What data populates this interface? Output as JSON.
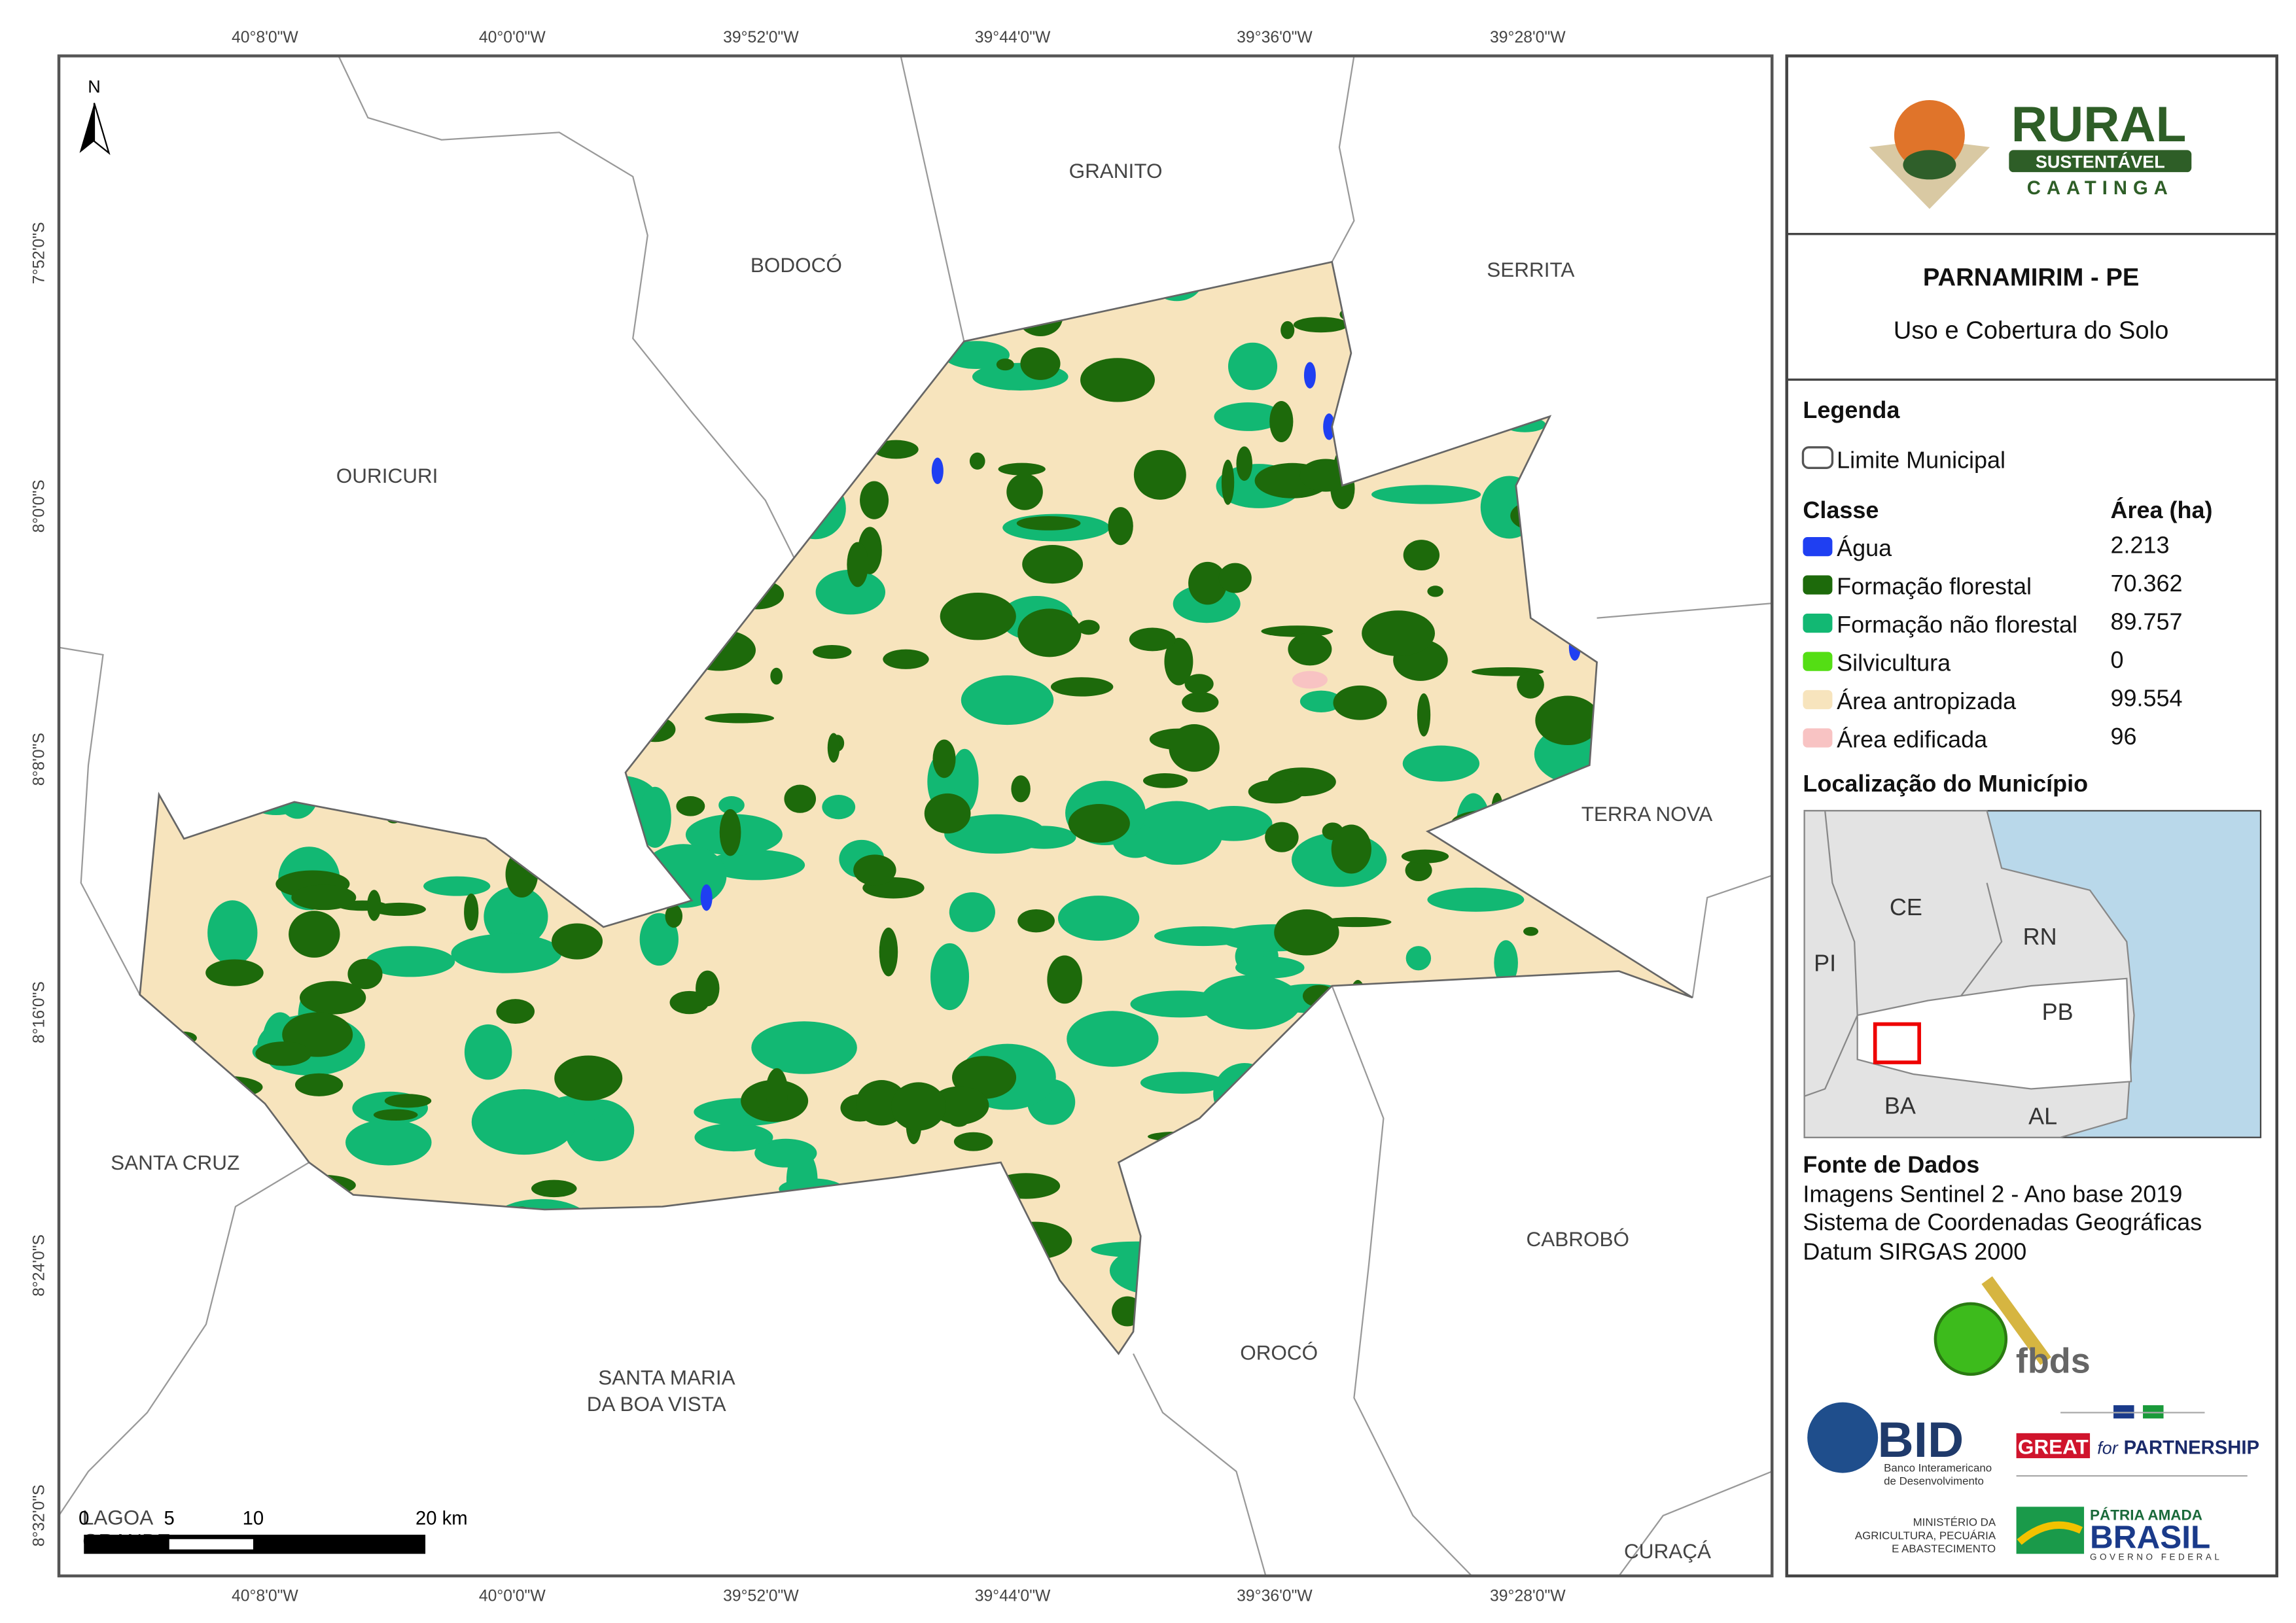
{
  "map": {
    "title": "PARNAMIRIM - PE",
    "subtitle": "Uso e Cobertura do Solo",
    "longitude_labels": [
      "40°8'0\"W",
      "40°0'0\"W",
      "39°52'0\"W",
      "39°44'0\"W",
      "39°36'0\"W",
      "39°28'0\"W"
    ],
    "latitude_labels": [
      "7°52'0\"S",
      "8°0'0\"S",
      "8°8'0\"S",
      "8°16'0\"S",
      "8°24'0\"S",
      "8°32'0\"S"
    ],
    "north_label": "N",
    "scale_bar": [
      "0",
      "5",
      "10",
      "20 km"
    ],
    "municipalities": [
      "GRANITO",
      "BODOCÓ",
      "SERRITA",
      "OURICURI",
      "TERRA NOVA",
      "SANTA CRUZ",
      "CABROBÓ",
      "OROCÓ",
      [
        "SANTA MARIA",
        "DA BOA VISTA"
      ],
      [
        "LAGOA",
        "GRANDE"
      ],
      "CURAÇÁ"
    ]
  },
  "legend": {
    "title": "Legenda",
    "boundary": "Limite Municipal",
    "class_header": "Classe",
    "area_header": "Área (ha)",
    "classes": [
      {
        "name": "Água",
        "area": "2.213",
        "color": "#1f3ff2"
      },
      {
        "name": "Formação florestal",
        "area": "70.362",
        "color": "#1d6a0b"
      },
      {
        "name": "Formação não florestal",
        "area": "89.757",
        "color": "#12b873"
      },
      {
        "name": "Silvicultura",
        "area": "0",
        "color": "#54de14"
      },
      {
        "name": "Área antropizada",
        "area": "99.554",
        "color": "#f7e4bd"
      },
      {
        "name": "Área edificada",
        "area": "96",
        "color": "#f8c3c3"
      }
    ]
  },
  "location": {
    "title": "Localização do Município",
    "states": [
      "CE",
      "RN",
      "PI",
      "PB",
      "BA",
      "AL"
    ]
  },
  "sources": {
    "title": "Fonte de Dados",
    "lines": [
      "Imagens Sentinel 2 - Ano base 2019",
      "Sistema de Coordenadas Geográficas",
      "Datum SIRGAS 2000"
    ]
  },
  "logos": {
    "rural": "RURAL",
    "sustentavel": "SUSTENTÁVEL",
    "caatinga": "CAATINGA",
    "fbds": "fbds",
    "bid": "BID",
    "bid_name": [
      "Banco Interamericano",
      "de Desenvolvimento"
    ],
    "great": "GREAT",
    "great_for": "for",
    "partnership": "PARTNERSHIP",
    "ministerio": [
      "MINISTÉRIO DA",
      "AGRICULTURA, PECUÁRIA",
      "E ABASTECIMENTO"
    ],
    "patria": "PÁTRIA AMADA",
    "brasil": "BRASIL",
    "governo": "GOVERNO FEDERAL"
  }
}
